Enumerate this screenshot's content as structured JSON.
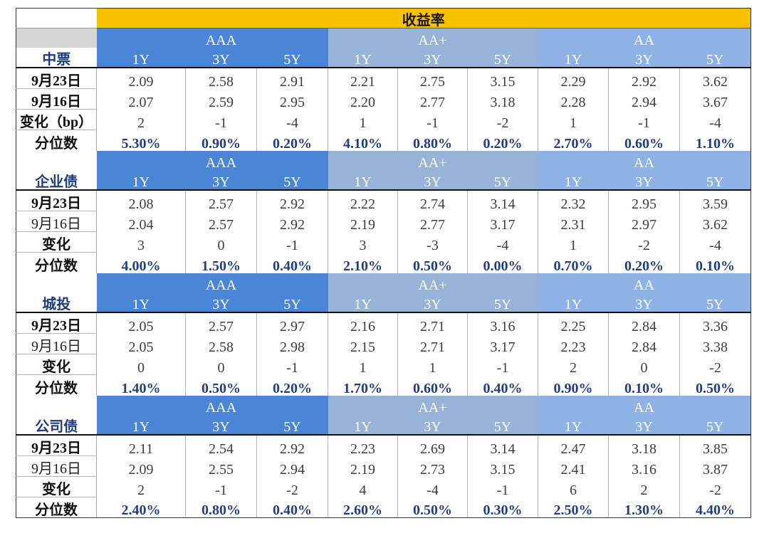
{
  "title": "收益率",
  "rating_groups": [
    "AAA",
    "AA+",
    "AA"
  ],
  "tenors": [
    "1Y",
    "3Y",
    "5Y"
  ],
  "sections": [
    {
      "name": "中票",
      "rows": [
        {
          "label": "9月23日",
          "values": [
            "2.09",
            "2.58",
            "2.91",
            "2.21",
            "2.75",
            "3.15",
            "2.29",
            "2.92",
            "3.62"
          ]
        },
        {
          "label": "9月16日",
          "values": [
            "2.07",
            "2.59",
            "2.95",
            "2.20",
            "2.77",
            "3.18",
            "2.28",
            "2.94",
            "3.67"
          ]
        },
        {
          "label": "变化（bp）",
          "values": [
            "2",
            "-1",
            "-4",
            "1",
            "-1",
            "-2",
            "1",
            "-1",
            "-4"
          ]
        },
        {
          "label": "分位数",
          "values": [
            "5.30%",
            "0.90%",
            "0.20%",
            "4.10%",
            "0.80%",
            "0.20%",
            "2.70%",
            "0.60%",
            "1.10%"
          ]
        }
      ]
    },
    {
      "name": "企业债",
      "rows": [
        {
          "label": "9月23日",
          "values": [
            "2.08",
            "2.57",
            "2.92",
            "2.22",
            "2.74",
            "3.14",
            "2.32",
            "2.95",
            "3.59"
          ]
        },
        {
          "label": "9月16日",
          "values": [
            "2.04",
            "2.57",
            "2.92",
            "2.19",
            "2.77",
            "3.17",
            "2.31",
            "2.97",
            "3.62"
          ]
        },
        {
          "label": "变化",
          "values": [
            "3",
            "0",
            "-1",
            "3",
            "-3",
            "-4",
            "1",
            "-2",
            "-4"
          ]
        },
        {
          "label": "分位数",
          "values": [
            "4.00%",
            "1.50%",
            "0.40%",
            "2.10%",
            "0.50%",
            "0.00%",
            "0.70%",
            "0.20%",
            "0.10%"
          ]
        }
      ]
    },
    {
      "name": "城投",
      "rows": [
        {
          "label": "9月23日",
          "values": [
            "2.05",
            "2.57",
            "2.97",
            "2.16",
            "2.71",
            "3.16",
            "2.25",
            "2.84",
            "3.36"
          ]
        },
        {
          "label": "9月16日",
          "values": [
            "2.05",
            "2.58",
            "2.98",
            "2.15",
            "2.71",
            "3.17",
            "2.23",
            "2.84",
            "3.38"
          ]
        },
        {
          "label": "变化",
          "values": [
            "0",
            "0",
            "-1",
            "1",
            "1",
            "-1",
            "2",
            "0",
            "-2"
          ]
        },
        {
          "label": "分位数",
          "values": [
            "1.40%",
            "0.50%",
            "0.20%",
            "1.70%",
            "0.60%",
            "0.40%",
            "0.90%",
            "0.10%",
            "0.50%"
          ]
        }
      ]
    },
    {
      "name": "公司债",
      "rows": [
        {
          "label": "9月23日",
          "values": [
            "2.11",
            "2.54",
            "2.92",
            "2.23",
            "2.69",
            "3.14",
            "2.47",
            "3.18",
            "3.85"
          ]
        },
        {
          "label": "9月16日",
          "values": [
            "2.09",
            "2.55",
            "2.94",
            "2.19",
            "2.73",
            "3.15",
            "2.41",
            "3.16",
            "3.87"
          ]
        },
        {
          "label": "变化",
          "values": [
            "2",
            "-1",
            "-2",
            "4",
            "-4",
            "-1",
            "6",
            "2",
            "-2"
          ]
        },
        {
          "label": "分位数",
          "values": [
            "2.40%",
            "0.80%",
            "0.40%",
            "2.60%",
            "0.50%",
            "0.30%",
            "2.50%",
            "1.30%",
            "4.40%"
          ]
        }
      ]
    }
  ],
  "colors": {
    "title_bg": "#f7c300",
    "aaa_header": "#4a86d5",
    "aa_plus_header": "#98b3d8",
    "aa_header": "#8eb2e4",
    "percentile_text": "#203f80"
  }
}
